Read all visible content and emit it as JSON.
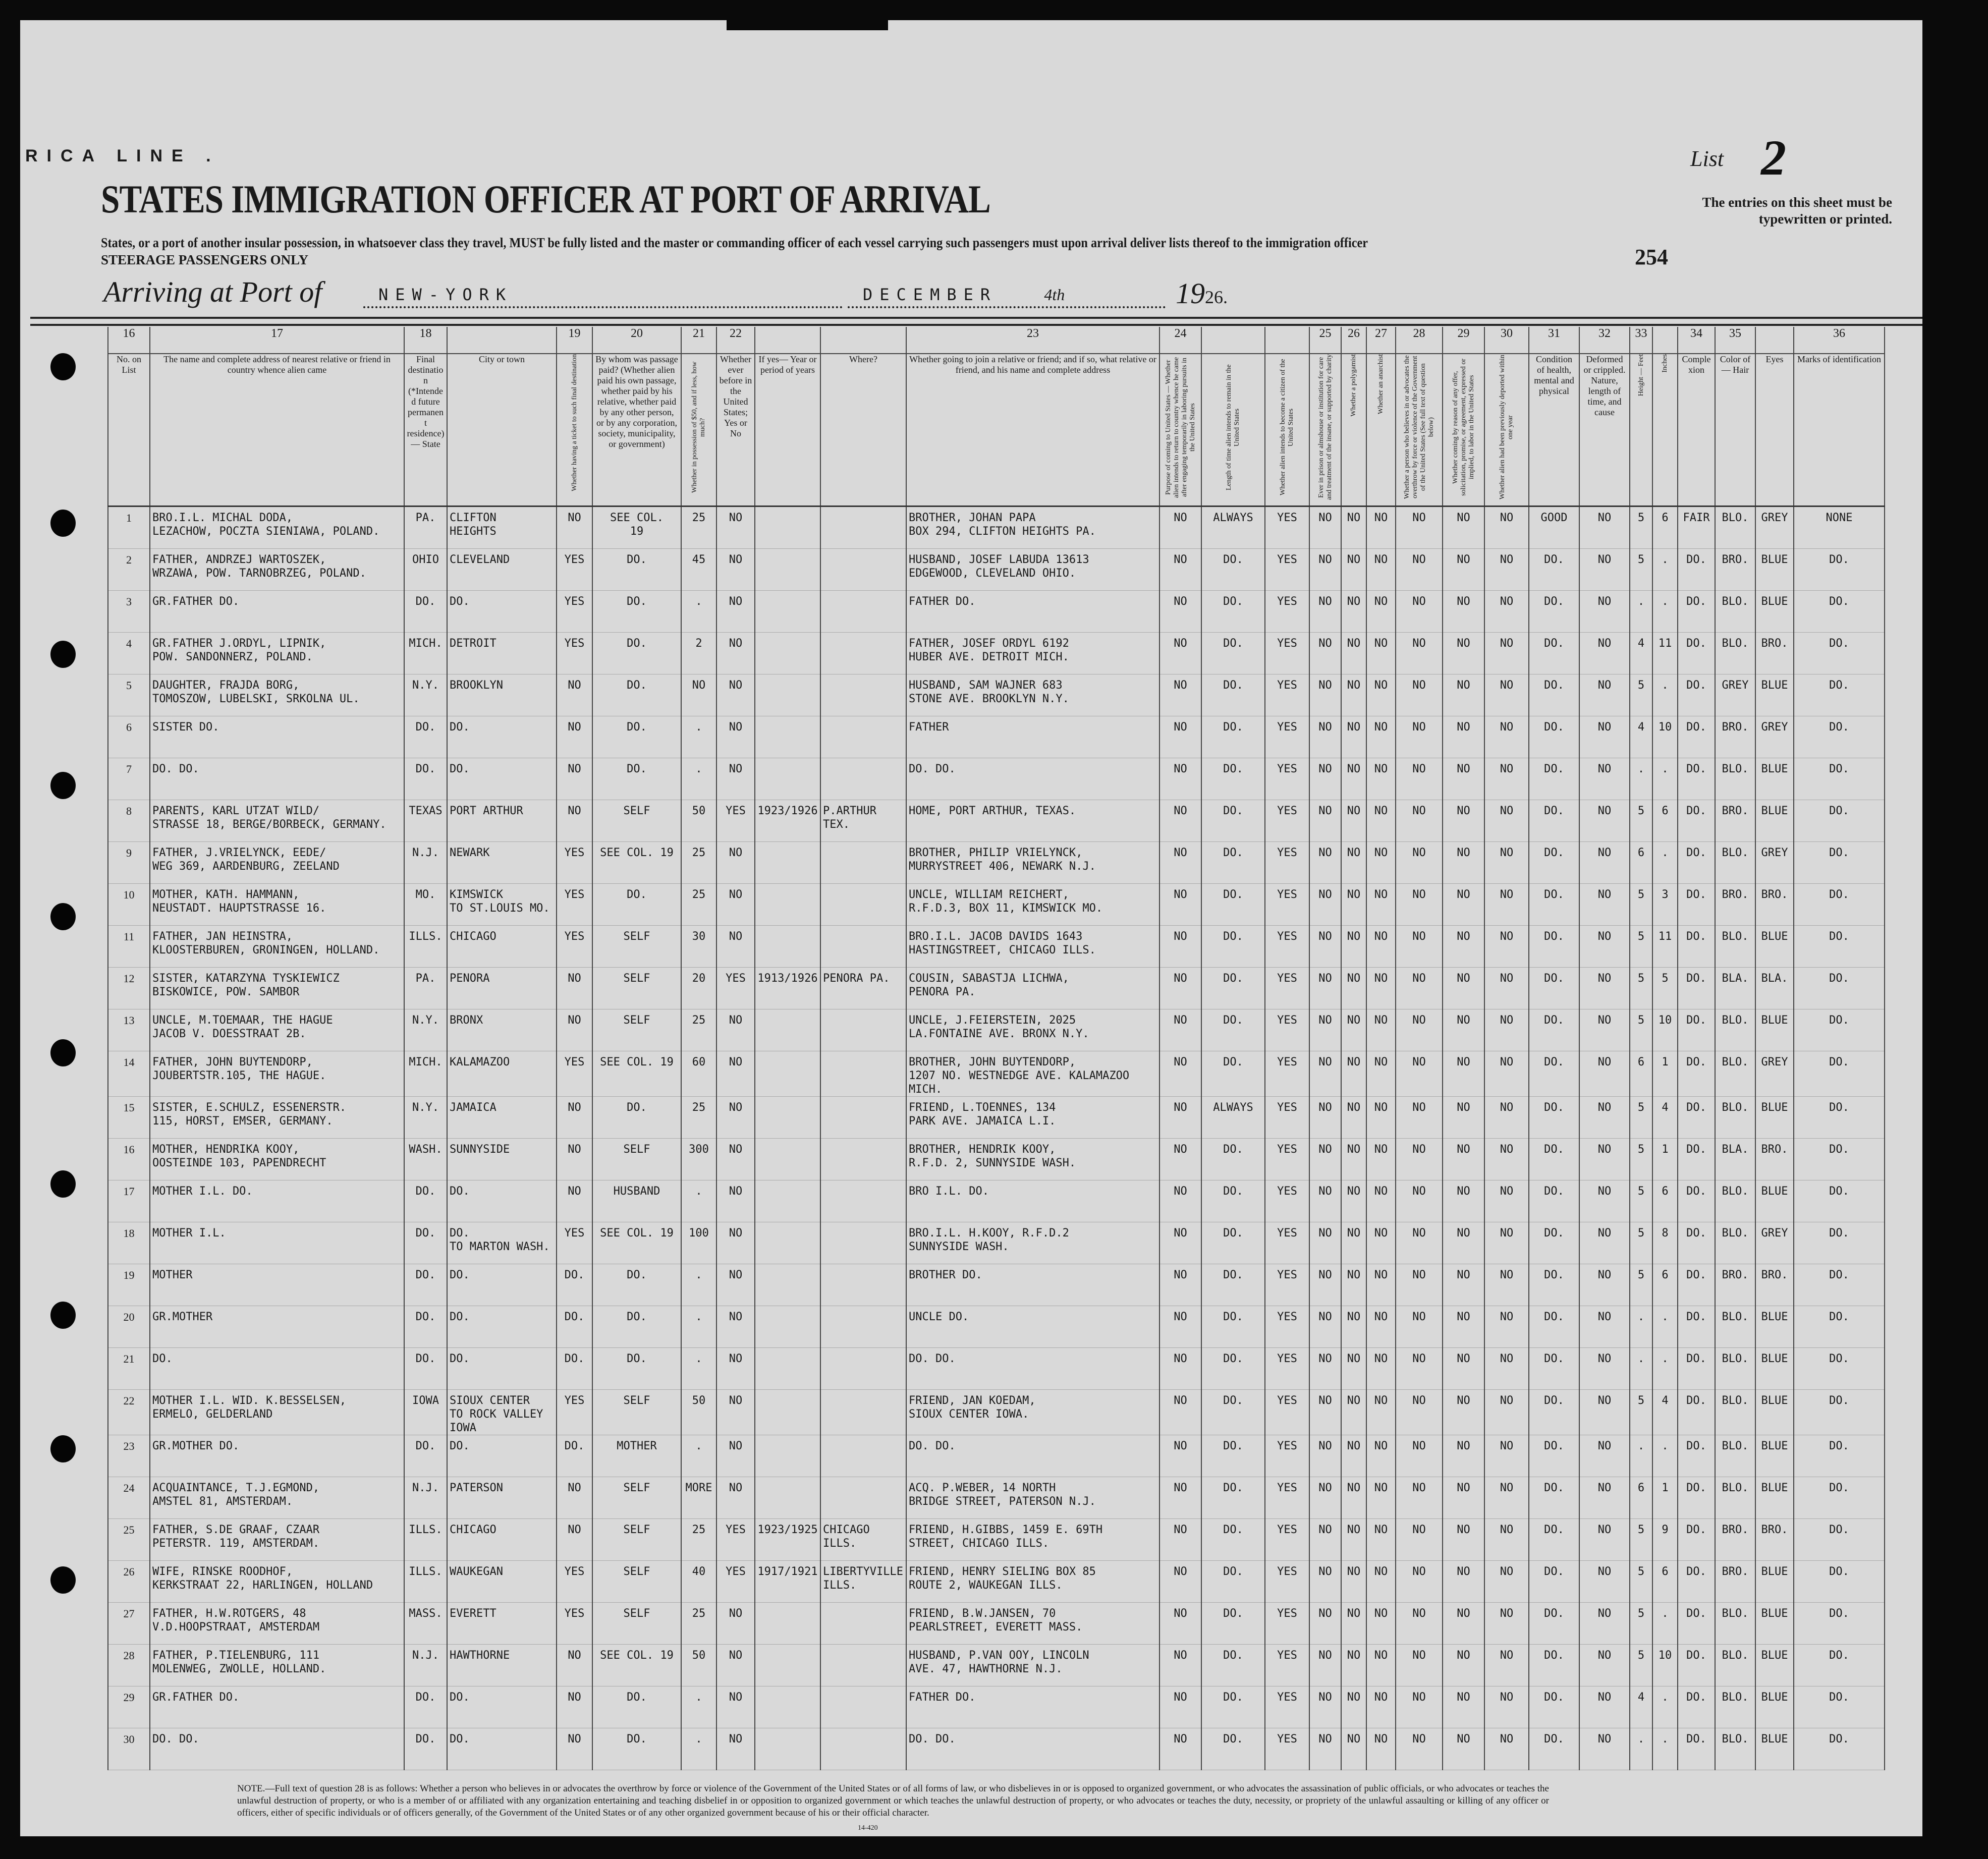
{
  "header": {
    "line_name": "RICA LINE .",
    "title": "STATES IMMIGRATION OFFICER AT PORT OF ARRIVAL",
    "subtext": "States, or a port of another insular possession, in whatsoever class they travel, MUST be fully listed and the master or commanding officer of each vessel carrying such passengers must upon arrival deliver lists thereof to the immigration officer",
    "steerage": "STEERAGE PASSENGERS ONLY",
    "list_label": "List",
    "list_number": "2",
    "entries_note": "The entries on this sheet must be typewritten or printed.",
    "sheet_number": "254",
    "arriving_label": "Arriving at Port of",
    "port": "NEW-YORK",
    "month": "DECEMBER",
    "day": "4th",
    "year_prefix": "19",
    "year_suffix": "26."
  },
  "columns": [
    {
      "num": "16",
      "label": "No. on List"
    },
    {
      "num": "17",
      "label": "The name and complete address of nearest relative or friend in country whence alien came"
    },
    {
      "num": "18",
      "label": "Final destination (*Intended future permanent residence) — State"
    },
    {
      "num": "",
      "label": "City or town"
    },
    {
      "num": "19",
      "label": "Whether having a ticket to such final destination",
      "vertical": true
    },
    {
      "num": "20",
      "label": "By whom was passage paid? (Whether alien paid his own passage, whether paid by his relative, whether paid by any other person, or by any corporation, society, municipality, or government)"
    },
    {
      "num": "21",
      "label": "Whether in possession of $50, and if less, how much?",
      "vertical": true
    },
    {
      "num": "22",
      "label": "Whether ever before in the United States; Yes or No"
    },
    {
      "num": "",
      "label": "If yes— Year or period of years"
    },
    {
      "num": "",
      "label": "Where?"
    },
    {
      "num": "23",
      "label": "Whether going to join a relative or friend; and if so, what relative or friend, and his name and complete address"
    },
    {
      "num": "24",
      "label": "Purpose of coming to United States — Whether alien intends to return to country whence he came after engaging temporarily in laboring pursuits in the United States",
      "vertical": true
    },
    {
      "num": "",
      "label": "Length of time alien intends to remain in the United States",
      "vertical": true
    },
    {
      "num": "",
      "label": "Whether alien intends to become a citizen of the United States",
      "vertical": true
    },
    {
      "num": "25",
      "label": "Ever in prison or almshouse or institution for care and treatment of the insane, or supported by charity",
      "vertical": true
    },
    {
      "num": "26",
      "label": "Whether a polygamist",
      "vertical": true
    },
    {
      "num": "27",
      "label": "Whether an anarchist",
      "vertical": true
    },
    {
      "num": "28",
      "label": "Whether a person who believes in or advocates the overthrow by force or violence of the Government of the United States (See full text of question below)",
      "vertical": true
    },
    {
      "num": "29",
      "label": "Whether coming by reason of any offer, solicitation, promise, or agreement, expressed or implied, to labor in the United States",
      "vertical": true
    },
    {
      "num": "30",
      "label": "Whether alien had been previously deported within one year",
      "vertical": true
    },
    {
      "num": "31",
      "label": "Condition of health, mental and physical"
    },
    {
      "num": "32",
      "label": "Deformed or crippled. Nature, length of time, and cause"
    },
    {
      "num": "33",
      "label": "Height — Feet",
      "vertical": true
    },
    {
      "num": "",
      "label": "Inches",
      "vertical": true
    },
    {
      "num": "34",
      "label": "Complexion"
    },
    {
      "num": "35",
      "label": "Color of— Hair"
    },
    {
      "num": "",
      "label": "Eyes"
    },
    {
      "num": "36",
      "label": "Marks of identification"
    }
  ],
  "rows": [
    [
      "1",
      "BRO.I.L. MICHAL DODA,\nLEZACHOW, POCZTA SIENIAWA, POLAND.",
      "PA.",
      "CLIFTON\nHEIGHTS",
      "NO",
      "SEE COL.\n19",
      "25",
      "NO",
      "",
      "",
      "BROTHER, JOHAN PAPA\nBOX 294, CLIFTON HEIGHTS PA.",
      "NO",
      "ALWAYS",
      "YES",
      "NO",
      "NO",
      "NO",
      "NO",
      "NO",
      "NO",
      "GOOD",
      "NO",
      "5",
      "6",
      "FAIR",
      "BLO.",
      "GREY",
      "NONE"
    ],
    [
      "2",
      "FATHER, ANDRZEJ WARTOSZEK,\nWRZAWA, POW. TARNOBRZEG, POLAND.",
      "OHIO",
      "CLEVELAND",
      "YES",
      "DO.",
      "45",
      "NO",
      "",
      "",
      "HUSBAND, JOSEF LABUDA 13613\nEDGEWOOD, CLEVELAND OHIO.",
      "NO",
      "DO.",
      "YES",
      "NO",
      "NO",
      "NO",
      "NO",
      "NO",
      "NO",
      "DO.",
      "NO",
      "5",
      ".",
      "DO.",
      "BRO.",
      "BLUE",
      "DO."
    ],
    [
      "3",
      "GR.FATHER          DO.",
      "DO.",
      "DO.",
      "YES",
      "DO.",
      ".",
      "NO",
      "",
      "",
      "FATHER             DO.",
      "NO",
      "DO.",
      "YES",
      "NO",
      "NO",
      "NO",
      "NO",
      "NO",
      "NO",
      "DO.",
      "NO",
      ".",
      ".",
      "DO.",
      "BLO.",
      "BLUE",
      "DO."
    ],
    [
      "4",
      "GR.FATHER J.ORDYL, LIPNIK,\nPOW. SANDONNERZ, POLAND.",
      "MICH.",
      "DETROIT",
      "YES",
      "DO.",
      "2",
      "NO",
      "",
      "",
      "FATHER, JOSEF ORDYL 6192\nHUBER AVE. DETROIT MICH.",
      "NO",
      "DO.",
      "YES",
      "NO",
      "NO",
      "NO",
      "NO",
      "NO",
      "NO",
      "DO.",
      "NO",
      "4",
      "11",
      "DO.",
      "BLO.",
      "BRO.",
      "DO."
    ],
    [
      "5",
      "DAUGHTER, FRAJDA BORG,\nTOMOSZOW, LUBELSKI, SRKOLNA UL.",
      "N.Y.",
      "BROOKLYN",
      "NO",
      "DO.",
      "NO",
      "NO",
      "",
      "",
      "HUSBAND, SAM WAJNER 683\nSTONE AVE. BROOKLYN N.Y.",
      "NO",
      "DO.",
      "YES",
      "NO",
      "NO",
      "NO",
      "NO",
      "NO",
      "NO",
      "DO.",
      "NO",
      "5",
      ".",
      "DO.",
      "GREY",
      "BLUE",
      "DO."
    ],
    [
      "6",
      "SISTER             DO.",
      "DO.",
      "DO.",
      "NO",
      "DO.",
      ".",
      "NO",
      "",
      "",
      "FATHER",
      "NO",
      "DO.",
      "YES",
      "NO",
      "NO",
      "NO",
      "NO",
      "NO",
      "NO",
      "DO.",
      "NO",
      "4",
      "10",
      "DO.",
      "BRO.",
      "GREY",
      "DO."
    ],
    [
      "7",
      "DO.                DO.",
      "DO.",
      "DO.",
      "NO",
      "DO.",
      ".",
      "NO",
      "",
      "",
      "DO.                DO.",
      "NO",
      "DO.",
      "YES",
      "NO",
      "NO",
      "NO",
      "NO",
      "NO",
      "NO",
      "DO.",
      "NO",
      ".",
      ".",
      "DO.",
      "BLO.",
      "BLUE",
      "DO."
    ],
    [
      "8",
      "PARENTS, KARL UTZAT WILD/\nSTRASSE 18, BERGE/BORBECK, GERMANY.",
      "TEXAS",
      "PORT ARTHUR",
      "NO",
      "SELF",
      "50",
      "YES",
      "1923/1926",
      "P.ARTHUR TEX.",
      "HOME, PORT ARTHUR, TEXAS.",
      "NO",
      "DO.",
      "YES",
      "NO",
      "NO",
      "NO",
      "NO",
      "NO",
      "NO",
      "DO.",
      "NO",
      "5",
      "6",
      "DO.",
      "BRO.",
      "BLUE",
      "DO."
    ],
    [
      "9",
      "FATHER, J.VRIELYNCK, EEDE/\nWEG 369, AARDENBURG, ZEELAND",
      "N.J.",
      "NEWARK",
      "YES",
      "SEE COL. 19",
      "25",
      "NO",
      "",
      "",
      "BROTHER, PHILIP VRIELYNCK,\nMURRYSTREET 406, NEWARK N.J.",
      "NO",
      "DO.",
      "YES",
      "NO",
      "NO",
      "NO",
      "NO",
      "NO",
      "NO",
      "DO.",
      "NO",
      "6",
      ".",
      "DO.",
      "BLO.",
      "GREY",
      "DO."
    ],
    [
      "10",
      "MOTHER, KATH. HAMMANN,\nNEUSTADT. HAUPTSTRASSE 16.",
      "MO.",
      "KIMSWICK\nTO ST.LOUIS MO.",
      "YES",
      "DO.",
      "25",
      "NO",
      "",
      "",
      "UNCLE, WILLIAM REICHERT,\nR.F.D.3, BOX 11, KIMSWICK MO.",
      "NO",
      "DO.",
      "YES",
      "NO",
      "NO",
      "NO",
      "NO",
      "NO",
      "NO",
      "DO.",
      "NO",
      "5",
      "3",
      "DO.",
      "BRO.",
      "BRO.",
      "DO."
    ],
    [
      "11",
      "FATHER, JAN HEINSTRA,\nKLOOSTERBUREN, GRONINGEN, HOLLAND.",
      "ILLS.",
      "CHICAGO",
      "YES",
      "SELF",
      "30",
      "NO",
      "",
      "",
      "BRO.I.L. JACOB DAVIDS 1643\nHASTINGSTREET, CHICAGO ILLS.",
      "NO",
      "DO.",
      "YES",
      "NO",
      "NO",
      "NO",
      "NO",
      "NO",
      "NO",
      "DO.",
      "NO",
      "5",
      "11",
      "DO.",
      "BLO.",
      "BLUE",
      "DO."
    ],
    [
      "12",
      "SISTER, KATARZYNA TYSKIEWICZ\nBISKOWICE, POW. SAMBOR",
      "PA.",
      "PENORA",
      "NO",
      "SELF",
      "20",
      "YES",
      "1913/1926",
      "PENORA PA.",
      "COUSIN, SABASTJA LICHWA,\nPENORA PA.",
      "NO",
      "DO.",
      "YES",
      "NO",
      "NO",
      "NO",
      "NO",
      "NO",
      "NO",
      "DO.",
      "NO",
      "5",
      "5",
      "DO.",
      "BLA.",
      "BLA.",
      "DO."
    ],
    [
      "13",
      "UNCLE, M.TOEMAAR, THE HAGUE\nJACOB V. DOESSTRAAT 2B.",
      "N.Y.",
      "BRONX",
      "NO",
      "SELF",
      "25",
      "NO",
      "",
      "",
      "UNCLE, J.FEIERSTEIN, 2025\nLA.FONTAINE AVE. BRONX N.Y.",
      "NO",
      "DO.",
      "YES",
      "NO",
      "NO",
      "NO",
      "NO",
      "NO",
      "NO",
      "DO.",
      "NO",
      "5",
      "10",
      "DO.",
      "BLO.",
      "BLUE",
      "DO."
    ],
    [
      "14",
      "FATHER, JOHN BUYTENDORP,\nJOUBERTSTR.105, THE HAGUE.",
      "MICH.",
      "KALAMAZOO",
      "YES",
      "SEE COL. 19",
      "60",
      "NO",
      "",
      "",
      "BROTHER, JOHN BUYTENDORP,\n1207 NO. WESTNEDGE AVE. KALAMAZOO MICH.",
      "NO",
      "DO.",
      "YES",
      "NO",
      "NO",
      "NO",
      "NO",
      "NO",
      "NO",
      "DO.",
      "NO",
      "6",
      "1",
      "DO.",
      "BLO.",
      "GREY",
      "DO."
    ],
    [
      "15",
      "SISTER, E.SCHULZ, ESSENERSTR.\n115, HORST, EMSER, GERMANY.",
      "N.Y.",
      "JAMAICA",
      "NO",
      "DO.",
      "25",
      "NO",
      "",
      "",
      "FRIEND, L.TOENNES, 134\nPARK AVE. JAMAICA L.I.",
      "NO",
      "ALWAYS",
      "YES",
      "NO",
      "NO",
      "NO",
      "NO",
      "NO",
      "NO",
      "DO.",
      "NO",
      "5",
      "4",
      "DO.",
      "BLO.",
      "BLUE",
      "DO."
    ],
    [
      "16",
      "MOTHER, HENDRIKA KOOY,\nOOSTEINDE 103, PAPENDRECHT",
      "WASH.",
      "SUNNYSIDE",
      "NO",
      "SELF",
      "300",
      "NO",
      "",
      "",
      "BROTHER, HENDRIK KOOY,\nR.F.D. 2, SUNNYSIDE WASH.",
      "NO",
      "DO.",
      "YES",
      "NO",
      "NO",
      "NO",
      "NO",
      "NO",
      "NO",
      "DO.",
      "NO",
      "5",
      "1",
      "DO.",
      "BLA.",
      "BRO.",
      "DO."
    ],
    [
      "17",
      "MOTHER I.L.        DO.",
      "DO.",
      "DO.",
      "NO",
      "HUSBAND",
      ".",
      "NO",
      "",
      "",
      "BRO I.L.           DO.",
      "NO",
      "DO.",
      "YES",
      "NO",
      "NO",
      "NO",
      "NO",
      "NO",
      "NO",
      "DO.",
      "NO",
      "5",
      "6",
      "DO.",
      "BLO.",
      "BLUE",
      "DO."
    ],
    [
      "18",
      "MOTHER I.L.",
      "DO.",
      "DO.\nTO MARTON WASH.",
      "YES",
      "SEE COL. 19",
      "100",
      "NO",
      "",
      "",
      "BRO.I.L. H.KOOY, R.F.D.2\nSUNNYSIDE WASH.",
      "NO",
      "DO.",
      "YES",
      "NO",
      "NO",
      "NO",
      "NO",
      "NO",
      "NO",
      "DO.",
      "NO",
      "5",
      "8",
      "DO.",
      "BLO.",
      "GREY",
      "DO."
    ],
    [
      "19",
      "MOTHER",
      "DO.",
      "DO.",
      "DO.",
      "DO.",
      ".",
      "NO",
      "",
      "",
      "BROTHER            DO.",
      "NO",
      "DO.",
      "YES",
      "NO",
      "NO",
      "NO",
      "NO",
      "NO",
      "NO",
      "DO.",
      "NO",
      "5",
      "6",
      "DO.",
      "BRO.",
      "BRO.",
      "DO."
    ],
    [
      "20",
      "GR.MOTHER",
      "DO.",
      "DO.",
      "DO.",
      "DO.",
      ".",
      "NO",
      "",
      "",
      "UNCLE              DO.",
      "NO",
      "DO.",
      "YES",
      "NO",
      "NO",
      "NO",
      "NO",
      "NO",
      "NO",
      "DO.",
      "NO",
      ".",
      ".",
      "DO.",
      "BLO.",
      "BLUE",
      "DO."
    ],
    [
      "21",
      "DO.",
      "DO.",
      "DO.",
      "DO.",
      "DO.",
      ".",
      "NO",
      "",
      "",
      "DO.                DO.",
      "NO",
      "DO.",
      "YES",
      "NO",
      "NO",
      "NO",
      "NO",
      "NO",
      "NO",
      "DO.",
      "NO",
      ".",
      ".",
      "DO.",
      "BLO.",
      "BLUE",
      "DO."
    ],
    [
      "22",
      "MOTHER I.L. WID. K.BESSELSEN,\nERMELO, GELDERLAND",
      "IOWA",
      "SIOUX CENTER\nTO ROCK VALLEY IOWA",
      "YES",
      "SELF",
      "50",
      "NO",
      "",
      "",
      "FRIEND, JAN KOEDAM,\nSIOUX CENTER IOWA.",
      "NO",
      "DO.",
      "YES",
      "NO",
      "NO",
      "NO",
      "NO",
      "NO",
      "NO",
      "DO.",
      "NO",
      "5",
      "4",
      "DO.",
      "BLO.",
      "BLUE",
      "DO."
    ],
    [
      "23",
      "GR.MOTHER          DO.",
      "DO.",
      "DO.",
      "DO.",
      "MOTHER",
      ".",
      "NO",
      "",
      "",
      "DO.                DO.",
      "NO",
      "DO.",
      "YES",
      "NO",
      "NO",
      "NO",
      "NO",
      "NO",
      "NO",
      "DO.",
      "NO",
      ".",
      ".",
      "DO.",
      "BLO.",
      "BLUE",
      "DO."
    ],
    [
      "24",
      "ACQUAINTANCE, T.J.EGMOND,\nAMSTEL 81, AMSTERDAM.",
      "N.J.",
      "PATERSON",
      "NO",
      "SELF",
      "MORE",
      "NO",
      "",
      "",
      "ACQ. P.WEBER, 14 NORTH\nBRIDGE STREET, PATERSON N.J.",
      "NO",
      "DO.",
      "YES",
      "NO",
      "NO",
      "NO",
      "NO",
      "NO",
      "NO",
      "DO.",
      "NO",
      "6",
      "1",
      "DO.",
      "BLO.",
      "BLUE",
      "DO."
    ],
    [
      "25",
      "FATHER, S.DE GRAAF, CZAAR\nPETERSTR. 119, AMSTERDAM.",
      "ILLS.",
      "CHICAGO",
      "NO",
      "SELF",
      "25",
      "YES",
      "1923/1925",
      "CHICAGO ILLS.",
      "FRIEND, H.GIBBS, 1459 E. 69TH\nSTREET, CHICAGO ILLS.",
      "NO",
      "DO.",
      "YES",
      "NO",
      "NO",
      "NO",
      "NO",
      "NO",
      "NO",
      "DO.",
      "NO",
      "5",
      "9",
      "DO.",
      "BRO.",
      "BRO.",
      "DO."
    ],
    [
      "26",
      "WIFE, RINSKE ROODHOF,\nKERKSTRAAT 22, HARLINGEN, HOLLAND",
      "ILLS.",
      "WAUKEGAN",
      "YES",
      "SELF",
      "40",
      "YES",
      "1917/1921",
      "LIBERTYVILLE ILLS.",
      "FRIEND, HENRY SIELING BOX 85\nROUTE 2, WAUKEGAN ILLS.",
      "NO",
      "DO.",
      "YES",
      "NO",
      "NO",
      "NO",
      "NO",
      "NO",
      "NO",
      "DO.",
      "NO",
      "5",
      "6",
      "DO.",
      "BRO.",
      "BLUE",
      "DO."
    ],
    [
      "27",
      "FATHER, H.W.ROTGERS, 48\nV.D.HOOPSTRAAT, AMSTERDAM",
      "MASS.",
      "EVERETT",
      "YES",
      "SELF",
      "25",
      "NO",
      "",
      "",
      "FRIEND, B.W.JANSEN, 70\nPEARLSTREET, EVERETT MASS.",
      "NO",
      "DO.",
      "YES",
      "NO",
      "NO",
      "NO",
      "NO",
      "NO",
      "NO",
      "DO.",
      "NO",
      "5",
      ".",
      "DO.",
      "BLO.",
      "BLUE",
      "DO."
    ],
    [
      "28",
      "FATHER, P.TIELENBURG, 111\nMOLENWEG, ZWOLLE, HOLLAND.",
      "N.J.",
      "HAWTHORNE",
      "NO",
      "SEE COL. 19",
      "50",
      "NO",
      "",
      "",
      "HUSBAND, P.VAN OOY, LINCOLN\nAVE. 47, HAWTHORNE N.J.",
      "NO",
      "DO.",
      "YES",
      "NO",
      "NO",
      "NO",
      "NO",
      "NO",
      "NO",
      "DO.",
      "NO",
      "5",
      "10",
      "DO.",
      "BLO.",
      "BLUE",
      "DO."
    ],
    [
      "29",
      "GR.FATHER          DO.",
      "DO.",
      "DO.",
      "NO",
      "DO.",
      ".",
      "NO",
      "",
      "",
      "FATHER             DO.",
      "NO",
      "DO.",
      "YES",
      "NO",
      "NO",
      "NO",
      "NO",
      "NO",
      "NO",
      "DO.",
      "NO",
      "4",
      ".",
      "DO.",
      "BLO.",
      "BLUE",
      "DO."
    ],
    [
      "30",
      "DO.                DO.",
      "DO.",
      "DO.",
      "NO",
      "DO.",
      ".",
      "NO",
      "",
      "",
      "DO.                DO.",
      "NO",
      "DO.",
      "YES",
      "NO",
      "NO",
      "NO",
      "NO",
      "NO",
      "NO",
      "DO.",
      "NO",
      ".",
      ".",
      "DO.",
      "BLO.",
      "BLUE",
      "DO."
    ]
  ],
  "footnote": "NOTE.—Full text of question 28 is as follows: Whether a person who believes in or advocates the overthrow by force or violence of the Government of the United States or of all forms of law, or who disbelieves in or is opposed to organized government, or who advocates the assassination of public officials, or who advocates or teaches the unlawful destruction of property, or who is a member of or affiliated with any organization entertaining and teaching disbelief in or opposition to organized government or which teaches the unlawful destruction of property, or who advocates or teaches the duty, necessity, or propriety of the unlawful assaulting or killing of any officer or officers, either of specific individuals or of officers generally, of the Government of the United States or of any other organized government because of his or their official character.",
  "form_number": "14-420"
}
